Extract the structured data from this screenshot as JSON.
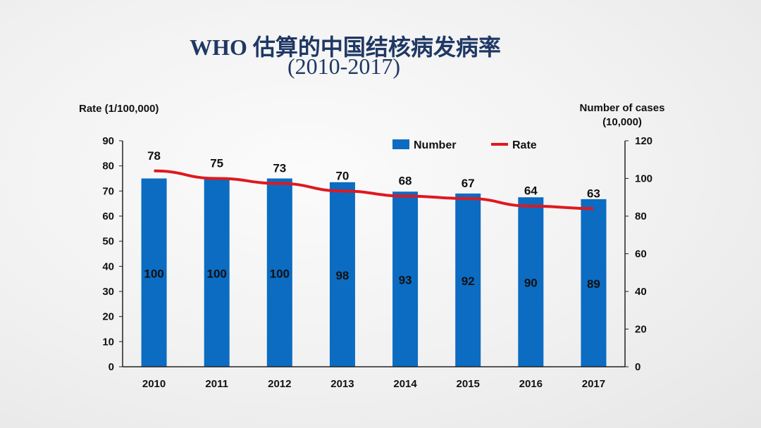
{
  "title_line1": "WHO 估算的中国结核病发病率",
  "title_line2": "(2010-2017)",
  "colors": {
    "bar": "#0b6cc2",
    "line": "#e0181f",
    "title": "#1f3864"
  },
  "chart_data": {
    "type": "bar",
    "categories": [
      "2010",
      "2011",
      "2012",
      "2013",
      "2014",
      "2015",
      "2016",
      "2017"
    ],
    "series": [
      {
        "name": "Number",
        "type": "bar",
        "axis": "right",
        "values": [
          100,
          100,
          100,
          98,
          93,
          92,
          90,
          89
        ]
      },
      {
        "name": "Rate",
        "type": "line",
        "axis": "left",
        "values": [
          78,
          75,
          73,
          70,
          68,
          67,
          64,
          63
        ]
      }
    ],
    "ylabel_left": "Rate (1/100,000)",
    "ylabel_right": "Number of cases (10,000)",
    "ylim_left": [
      0,
      90
    ],
    "yticks_left": [
      0,
      10,
      20,
      30,
      40,
      50,
      60,
      70,
      80,
      90
    ],
    "ylim_right": [
      0,
      120
    ],
    "yticks_right": [
      0,
      20,
      40,
      60,
      80,
      100,
      120
    ],
    "legend_position": "top-right",
    "grid": false
  }
}
